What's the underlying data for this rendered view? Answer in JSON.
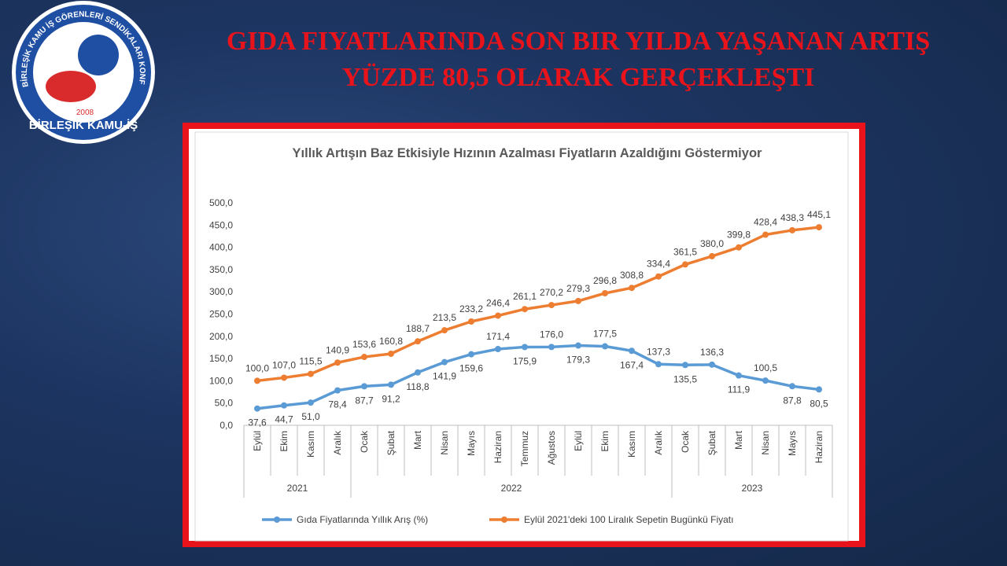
{
  "header": {
    "title": [
      "GIDA FIYATLARINDA SON BIR YILDA YAŞANAN ARTIŞ",
      "YÜZDE 80,5 OLARAK GERÇEKLEŞTI"
    ]
  },
  "logo": {
    "name": "BİRLEŞİK KAMU-İŞ",
    "ring": "BİRLEŞİK KAMU İŞ GÖRENLERİ SENDİKALARI KONFEDERASYONU",
    "year": "2008"
  },
  "chart_data": {
    "type": "line",
    "title": "Yıllık Artışın Baz Etkisiyle Hızının Azalması Fiyatların Azaldığını Göstermiyor",
    "groups": [
      {
        "label": "2021",
        "categories": [
          "Eylül",
          "Ekim",
          "Kasım",
          "Aralık"
        ]
      },
      {
        "label": "2022",
        "categories": [
          "Ocak",
          "Şubat",
          "Mart",
          "Nisan",
          "Mayıs",
          "Haziran",
          "Temmuz",
          "Ağustos",
          "Eylül",
          "Ekim",
          "Kasım",
          "Aralık"
        ]
      },
      {
        "label": "2023",
        "categories": [
          "Ocak",
          "Şubat",
          "Mart",
          "Nisan",
          "Mayıs",
          "Haziran"
        ]
      }
    ],
    "series": [
      {
        "name": "Gıda Fiyatlarında Yıllık Arış (%)",
        "color": "#5b9bd5",
        "values": [
          37.6,
          44.7,
          51.0,
          78.4,
          87.7,
          91.2,
          118.8,
          141.9,
          159.6,
          171.4,
          175.9,
          176.0,
          179.3,
          177.5,
          167.4,
          137.3,
          135.5,
          136.3,
          111.9,
          100.5,
          87.8,
          80.5
        ],
        "value_labels": [
          "37,6",
          "44,7",
          "51,0",
          "78,4",
          "87,7",
          "91,2",
          "118,8",
          "141,9",
          "159,6",
          "171,4",
          "175,9",
          "176,0",
          "179,3",
          "177,5",
          "167,4",
          "137,3",
          "135,5",
          "136,3",
          "111,9",
          "100,5",
          "87,8",
          "80,5"
        ]
      },
      {
        "name": "Eylül 2021'deki 100 Liralık Sepetin Bugünkü  Fiyatı",
        "color": "#ed7d31",
        "values": [
          100.0,
          107.0,
          115.5,
          140.9,
          153.6,
          160.8,
          188.7,
          213.5,
          233.2,
          246.4,
          261.1,
          270.2,
          279.3,
          296.8,
          308.8,
          334.4,
          361.5,
          380.0,
          399.8,
          428.4,
          438.3,
          445.1
        ],
        "value_labels": [
          "100,0",
          "107,0",
          "115,5",
          "140,9",
          "153,6",
          "160,8",
          "188,7",
          "213,5",
          "233,2",
          "246,4",
          "261,1",
          "270,2",
          "279,3",
          "296,8",
          "308,8",
          "334,4",
          "361,5",
          "380,0",
          "399,8",
          "428,4",
          "438,3",
          "445,1"
        ]
      }
    ],
    "ylim": [
      0,
      500
    ],
    "yticks": [
      {
        "value": 0,
        "label": "0,0"
      },
      {
        "value": 50,
        "label": "50,0"
      },
      {
        "value": 100,
        "label": "100,0"
      },
      {
        "value": 150,
        "label": "150,0"
      },
      {
        "value": 200,
        "label": "200,0"
      },
      {
        "value": 250,
        "label": "250,0"
      },
      {
        "value": 300,
        "label": "300,0"
      },
      {
        "value": 350,
        "label": "350,0"
      },
      {
        "value": 400,
        "label": "400,0"
      },
      {
        "value": 450,
        "label": "450,0"
      },
      {
        "value": 500,
        "label": "500,0"
      }
    ],
    "grid": false,
    "legend": "bottom"
  }
}
